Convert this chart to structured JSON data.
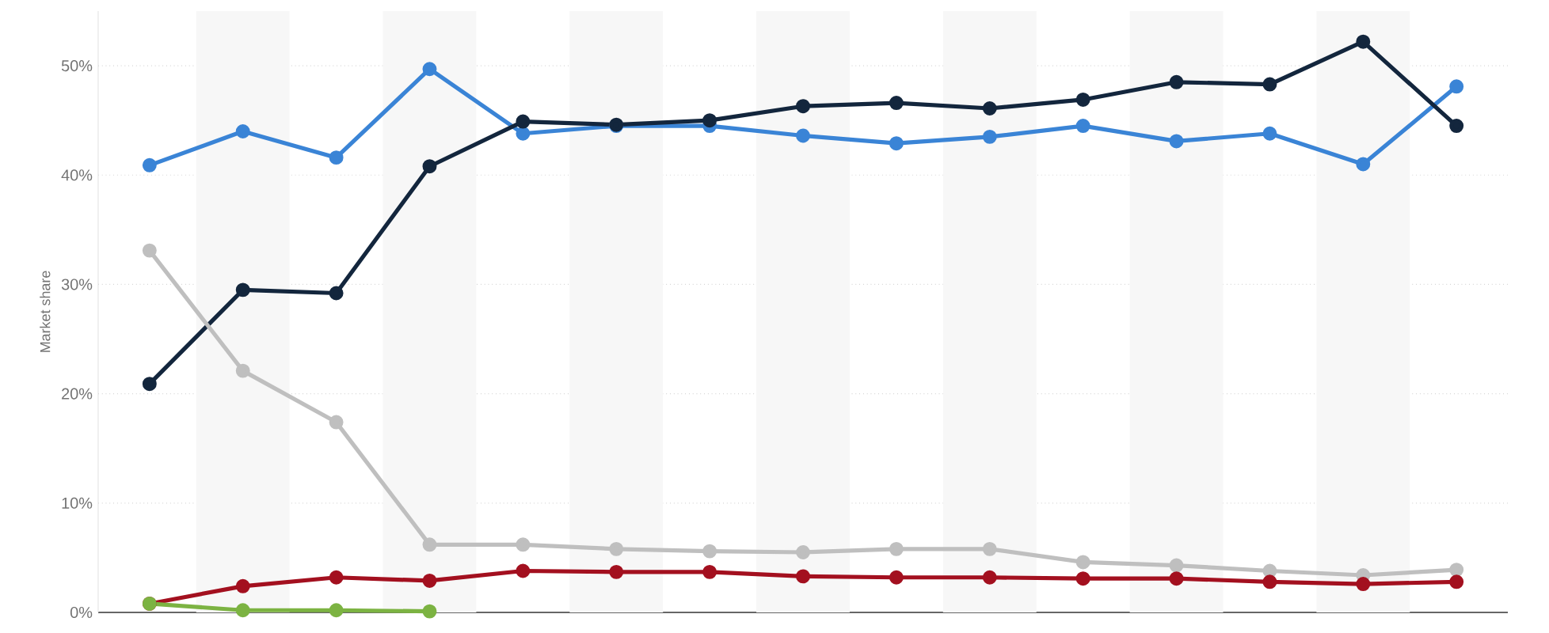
{
  "chart_data": {
    "type": "line",
    "ylabel": "Market share",
    "categories": [
      null,
      null,
      null,
      null,
      null,
      null,
      null,
      null,
      null,
      null,
      null,
      null,
      null,
      null,
      null
    ],
    "ylim": [
      0,
      55
    ],
    "yticks": [
      {
        "value": 0,
        "label": "0%"
      },
      {
        "value": 10,
        "label": "10%"
      },
      {
        "value": 20,
        "label": "20%"
      },
      {
        "value": 30,
        "label": "30%"
      },
      {
        "value": 40,
        "label": "40%"
      },
      {
        "value": 50,
        "label": "50%"
      }
    ],
    "grid": "y",
    "marker": "circle",
    "line_style": "solid",
    "tick_labels": "y",
    "series": [
      {
        "color": "#3a84d6",
        "values": [
          40.9,
          44.0,
          41.6,
          49.7,
          43.8,
          44.5,
          44.5,
          43.6,
          42.9,
          43.5,
          44.5,
          43.1,
          43.8,
          41.0,
          48.1
        ]
      },
      {
        "color": "#13263d",
        "values": [
          20.9,
          29.5,
          29.2,
          40.8,
          44.9,
          44.6,
          45.0,
          46.3,
          46.6,
          46.1,
          46.9,
          48.5,
          48.3,
          52.2,
          44.5
        ]
      },
      {
        "color": "#bfbfbf",
        "values": [
          33.1,
          22.1,
          17.4,
          6.2,
          6.2,
          5.8,
          5.6,
          5.5,
          5.8,
          5.8,
          4.6,
          4.3,
          3.8,
          3.4,
          3.9
        ]
      },
      {
        "color": "#a3101f",
        "values": [
          0.8,
          2.4,
          3.2,
          2.9,
          3.8,
          3.7,
          3.7,
          3.3,
          3.2,
          3.2,
          3.1,
          3.1,
          2.8,
          2.6,
          2.8
        ]
      },
      {
        "color": "#7cb342",
        "values": [
          0.8,
          0.2,
          0.2,
          0.1,
          null,
          null,
          null,
          null,
          null,
          null,
          null,
          null,
          null,
          null,
          null
        ]
      }
    ]
  }
}
